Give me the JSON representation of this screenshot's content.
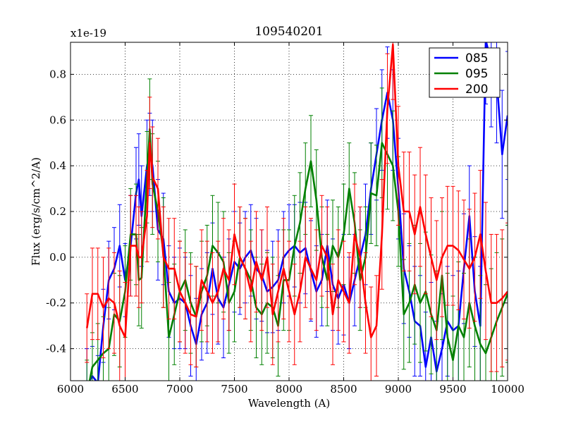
{
  "chart_data": {
    "type": "line",
    "title": "109540201",
    "xlabel": "Wavelength (A)",
    "ylabel": "Flux (erg/s/cm^2/A)",
    "offset_label": "x1e-19",
    "xlim": [
      6000,
      10000
    ],
    "ylim": [
      -0.54,
      0.94
    ],
    "xticks": [
      6000,
      6500,
      7000,
      7500,
      8000,
      8500,
      9000,
      9500,
      10000
    ],
    "xtick_labels": [
      "6000",
      "6500",
      "7000",
      "7500",
      "8000",
      "8500",
      "9000",
      "9500",
      "10000"
    ],
    "yticks": [
      -0.4,
      -0.2,
      0.0,
      0.2,
      0.4,
      0.6,
      0.8
    ],
    "ytick_labels": [
      "-0.4",
      "-0.2",
      "0.0",
      "0.2",
      "0.4",
      "0.6",
      "0.8"
    ],
    "grid": true,
    "legend_position": "top-right",
    "series": [
      {
        "name": "085",
        "color": "#0000ff",
        "x": [
          6150,
          6200,
          6250,
          6300,
          6350,
          6400,
          6450,
          6500,
          6550,
          6600,
          6625,
          6650,
          6700,
          6725,
          6750,
          6800,
          6850,
          6900,
          6950,
          7000,
          7050,
          7100,
          7150,
          7200,
          7250,
          7300,
          7350,
          7400,
          7450,
          7500,
          7550,
          7600,
          7650,
          7700,
          7750,
          7800,
          7850,
          7900,
          7950,
          8000,
          8050,
          8100,
          8150,
          8200,
          8250,
          8300,
          8350,
          8400,
          8450,
          8500,
          8550,
          8600,
          8650,
          8700,
          8750,
          8800,
          8850,
          8900,
          8950,
          9000,
          9050,
          9100,
          9150,
          9200,
          9250,
          9300,
          9350,
          9400,
          9450,
          9500,
          9550,
          9600,
          9650,
          9700,
          9750,
          9800,
          9850,
          9900,
          9950,
          10000
        ],
        "y": [
          -0.56,
          -0.52,
          -0.55,
          -0.3,
          -0.1,
          -0.05,
          0.05,
          -0.1,
          0.05,
          0.28,
          0.34,
          0.18,
          0.4,
          0.45,
          0.4,
          0.12,
          0.08,
          -0.15,
          -0.2,
          -0.18,
          -0.2,
          -0.3,
          -0.38,
          -0.25,
          -0.2,
          -0.05,
          -0.18,
          -0.22,
          -0.12,
          -0.02,
          -0.05,
          0.0,
          0.03,
          -0.05,
          -0.08,
          -0.15,
          -0.13,
          -0.1,
          0.0,
          0.03,
          0.05,
          0.02,
          0.04,
          -0.06,
          -0.15,
          -0.1,
          0.05,
          -0.12,
          -0.18,
          -0.12,
          -0.2,
          -0.1,
          0.0,
          0.1,
          0.3,
          0.45,
          0.6,
          0.72,
          0.6,
          0.3,
          -0.05,
          -0.15,
          -0.28,
          -0.3,
          -0.48,
          -0.35,
          -0.5,
          -0.4,
          -0.28,
          -0.32,
          -0.3,
          -0.05,
          0.18,
          -0.15,
          -0.3,
          0.95,
          0.85,
          0.78,
          0.45,
          0.62
        ],
        "err": [
          0.16,
          0.13,
          0.12,
          0.16,
          0.17,
          0.18,
          0.18,
          0.16,
          0.22,
          0.2,
          0.2,
          0.22,
          0.2,
          0.18,
          0.2,
          0.22,
          0.2,
          0.2,
          0.2,
          0.22,
          0.2,
          0.22,
          0.2,
          0.2,
          0.22,
          0.2,
          0.2,
          0.22,
          0.2,
          0.22,
          0.2,
          0.2,
          0.2,
          0.22,
          0.2,
          0.18,
          0.2,
          0.22,
          0.2,
          0.2,
          0.18,
          0.22,
          0.2,
          0.22,
          0.2,
          0.2,
          0.2,
          0.2,
          0.2,
          0.22,
          0.2,
          0.2,
          0.22,
          0.22,
          0.2,
          0.2,
          0.22,
          0.2,
          0.22,
          0.22,
          0.24,
          0.2,
          0.24,
          0.22,
          0.24,
          0.24,
          0.22,
          0.24,
          0.24,
          0.24,
          0.24,
          0.24,
          0.22,
          0.24,
          0.26,
          0.28,
          0.28,
          0.28,
          0.28,
          0.28
        ]
      },
      {
        "name": "095",
        "color": "#008000",
        "x": [
          6150,
          6200,
          6250,
          6300,
          6350,
          6400,
          6450,
          6500,
          6550,
          6600,
          6625,
          6650,
          6700,
          6725,
          6750,
          6800,
          6850,
          6900,
          6950,
          7000,
          7050,
          7100,
          7150,
          7200,
          7250,
          7300,
          7350,
          7400,
          7450,
          7500,
          7550,
          7600,
          7650,
          7700,
          7750,
          7800,
          7850,
          7900,
          7950,
          8000,
          8050,
          8100,
          8150,
          8200,
          8250,
          8300,
          8350,
          8400,
          8450,
          8500,
          8550,
          8600,
          8650,
          8700,
          8750,
          8800,
          8850,
          8900,
          8950,
          9000,
          9050,
          9100,
          9150,
          9200,
          9250,
          9300,
          9350,
          9400,
          9450,
          9500,
          9550,
          9600,
          9650,
          9700,
          9750,
          9800,
          9850,
          9900,
          9950,
          10000
        ],
        "y": [
          -0.6,
          -0.48,
          -0.45,
          -0.42,
          -0.4,
          -0.25,
          -0.28,
          -0.15,
          0.1,
          0.1,
          -0.1,
          -0.09,
          0.35,
          0.56,
          0.32,
          0.2,
          0.02,
          -0.35,
          -0.25,
          -0.15,
          -0.1,
          -0.2,
          -0.26,
          -0.15,
          -0.08,
          0.05,
          0.02,
          -0.02,
          -0.2,
          -0.15,
          0.0,
          -0.05,
          -0.1,
          -0.22,
          -0.25,
          -0.2,
          -0.22,
          -0.3,
          -0.1,
          -0.1,
          0.05,
          0.15,
          0.3,
          0.42,
          0.25,
          0.0,
          -0.1,
          0.05,
          0.0,
          0.1,
          0.3,
          0.15,
          -0.1,
          0.0,
          0.28,
          0.27,
          0.5,
          0.45,
          0.4,
          0.2,
          -0.25,
          -0.2,
          -0.12,
          -0.2,
          -0.15,
          -0.25,
          -0.32,
          -0.08,
          -0.35,
          -0.45,
          -0.3,
          -0.35,
          -0.2,
          -0.3,
          -0.38,
          -0.42,
          -0.35,
          -0.28,
          -0.22,
          -0.16
        ],
        "err": [
          0.15,
          0.15,
          0.16,
          0.16,
          0.18,
          0.18,
          0.2,
          0.2,
          0.2,
          0.22,
          0.2,
          0.22,
          0.2,
          0.22,
          0.22,
          0.22,
          0.24,
          0.24,
          0.22,
          0.22,
          0.22,
          0.22,
          0.22,
          0.22,
          0.22,
          0.22,
          0.22,
          0.22,
          0.22,
          0.22,
          0.22,
          0.22,
          0.22,
          0.22,
          0.22,
          0.22,
          0.22,
          0.22,
          0.22,
          0.22,
          0.22,
          0.22,
          0.2,
          0.2,
          0.22,
          0.22,
          0.2,
          0.2,
          0.22,
          0.22,
          0.2,
          0.22,
          0.22,
          0.22,
          0.22,
          0.22,
          0.24,
          0.24,
          0.24,
          0.24,
          0.24,
          0.26,
          0.26,
          0.26,
          0.26,
          0.26,
          0.26,
          0.28,
          0.28,
          0.28,
          0.28,
          0.28,
          0.28,
          0.3,
          0.3,
          0.3,
          0.3,
          0.3,
          0.3,
          0.3
        ]
      },
      {
        "name": "200",
        "color": "#ff0000",
        "x": [
          6150,
          6200,
          6250,
          6300,
          6350,
          6400,
          6450,
          6500,
          6550,
          6600,
          6625,
          6650,
          6700,
          6725,
          6750,
          6800,
          6850,
          6900,
          6950,
          7000,
          7050,
          7100,
          7150,
          7200,
          7250,
          7300,
          7350,
          7400,
          7450,
          7500,
          7550,
          7600,
          7650,
          7700,
          7750,
          7800,
          7850,
          7900,
          7950,
          8000,
          8050,
          8100,
          8150,
          8200,
          8250,
          8300,
          8350,
          8400,
          8450,
          8500,
          8550,
          8600,
          8650,
          8700,
          8750,
          8800,
          8850,
          8900,
          8950,
          9000,
          9050,
          9100,
          9150,
          9200,
          9250,
          9300,
          9350,
          9400,
          9450,
          9500,
          9550,
          9600,
          9650,
          9700,
          9750,
          9800,
          9850,
          9900,
          9950,
          10000
        ],
        "y": [
          -0.31,
          -0.16,
          -0.16,
          -0.22,
          -0.18,
          -0.2,
          -0.3,
          -0.35,
          0.05,
          0.05,
          0.0,
          0.0,
          0.18,
          0.5,
          0.35,
          0.3,
          0.0,
          -0.05,
          -0.05,
          -0.15,
          -0.2,
          -0.25,
          -0.26,
          -0.1,
          -0.15,
          -0.2,
          -0.15,
          -0.05,
          -0.1,
          0.1,
          0.0,
          -0.05,
          -0.15,
          -0.02,
          -0.1,
          0.0,
          -0.25,
          -0.15,
          -0.05,
          -0.15,
          -0.25,
          -0.15,
          0.0,
          -0.05,
          -0.1,
          0.05,
          0.0,
          -0.25,
          -0.1,
          -0.15,
          -0.2,
          0.1,
          0.0,
          -0.2,
          -0.35,
          -0.3,
          0.1,
          0.65,
          0.93,
          0.4,
          0.2,
          0.2,
          0.1,
          0.22,
          0.1,
          0.0,
          -0.1,
          0.0,
          0.05,
          0.05,
          0.03,
          -0.01,
          -0.05,
          0.0,
          0.1,
          -0.06,
          -0.2,
          -0.2,
          -0.18,
          -0.15
        ],
        "err": [
          0.15,
          0.2,
          0.2,
          0.22,
          0.22,
          0.22,
          0.24,
          0.24,
          0.22,
          0.22,
          0.22,
          0.2,
          0.2,
          0.2,
          0.22,
          0.22,
          0.22,
          0.22,
          0.22,
          0.22,
          0.22,
          0.22,
          0.22,
          0.22,
          0.22,
          0.22,
          0.22,
          0.22,
          0.22,
          0.22,
          0.22,
          0.22,
          0.22,
          0.22,
          0.22,
          0.22,
          0.22,
          0.22,
          0.22,
          0.22,
          0.22,
          0.22,
          0.22,
          0.22,
          0.22,
          0.22,
          0.22,
          0.22,
          0.22,
          0.22,
          0.22,
          0.22,
          0.22,
          0.22,
          0.22,
          0.22,
          0.24,
          0.24,
          0.24,
          0.26,
          0.26,
          0.26,
          0.26,
          0.26,
          0.26,
          0.26,
          0.26,
          0.26,
          0.26,
          0.26,
          0.26,
          0.26,
          0.26,
          0.28,
          0.28,
          0.3,
          0.3,
          0.3,
          0.3,
          0.3
        ]
      }
    ]
  }
}
